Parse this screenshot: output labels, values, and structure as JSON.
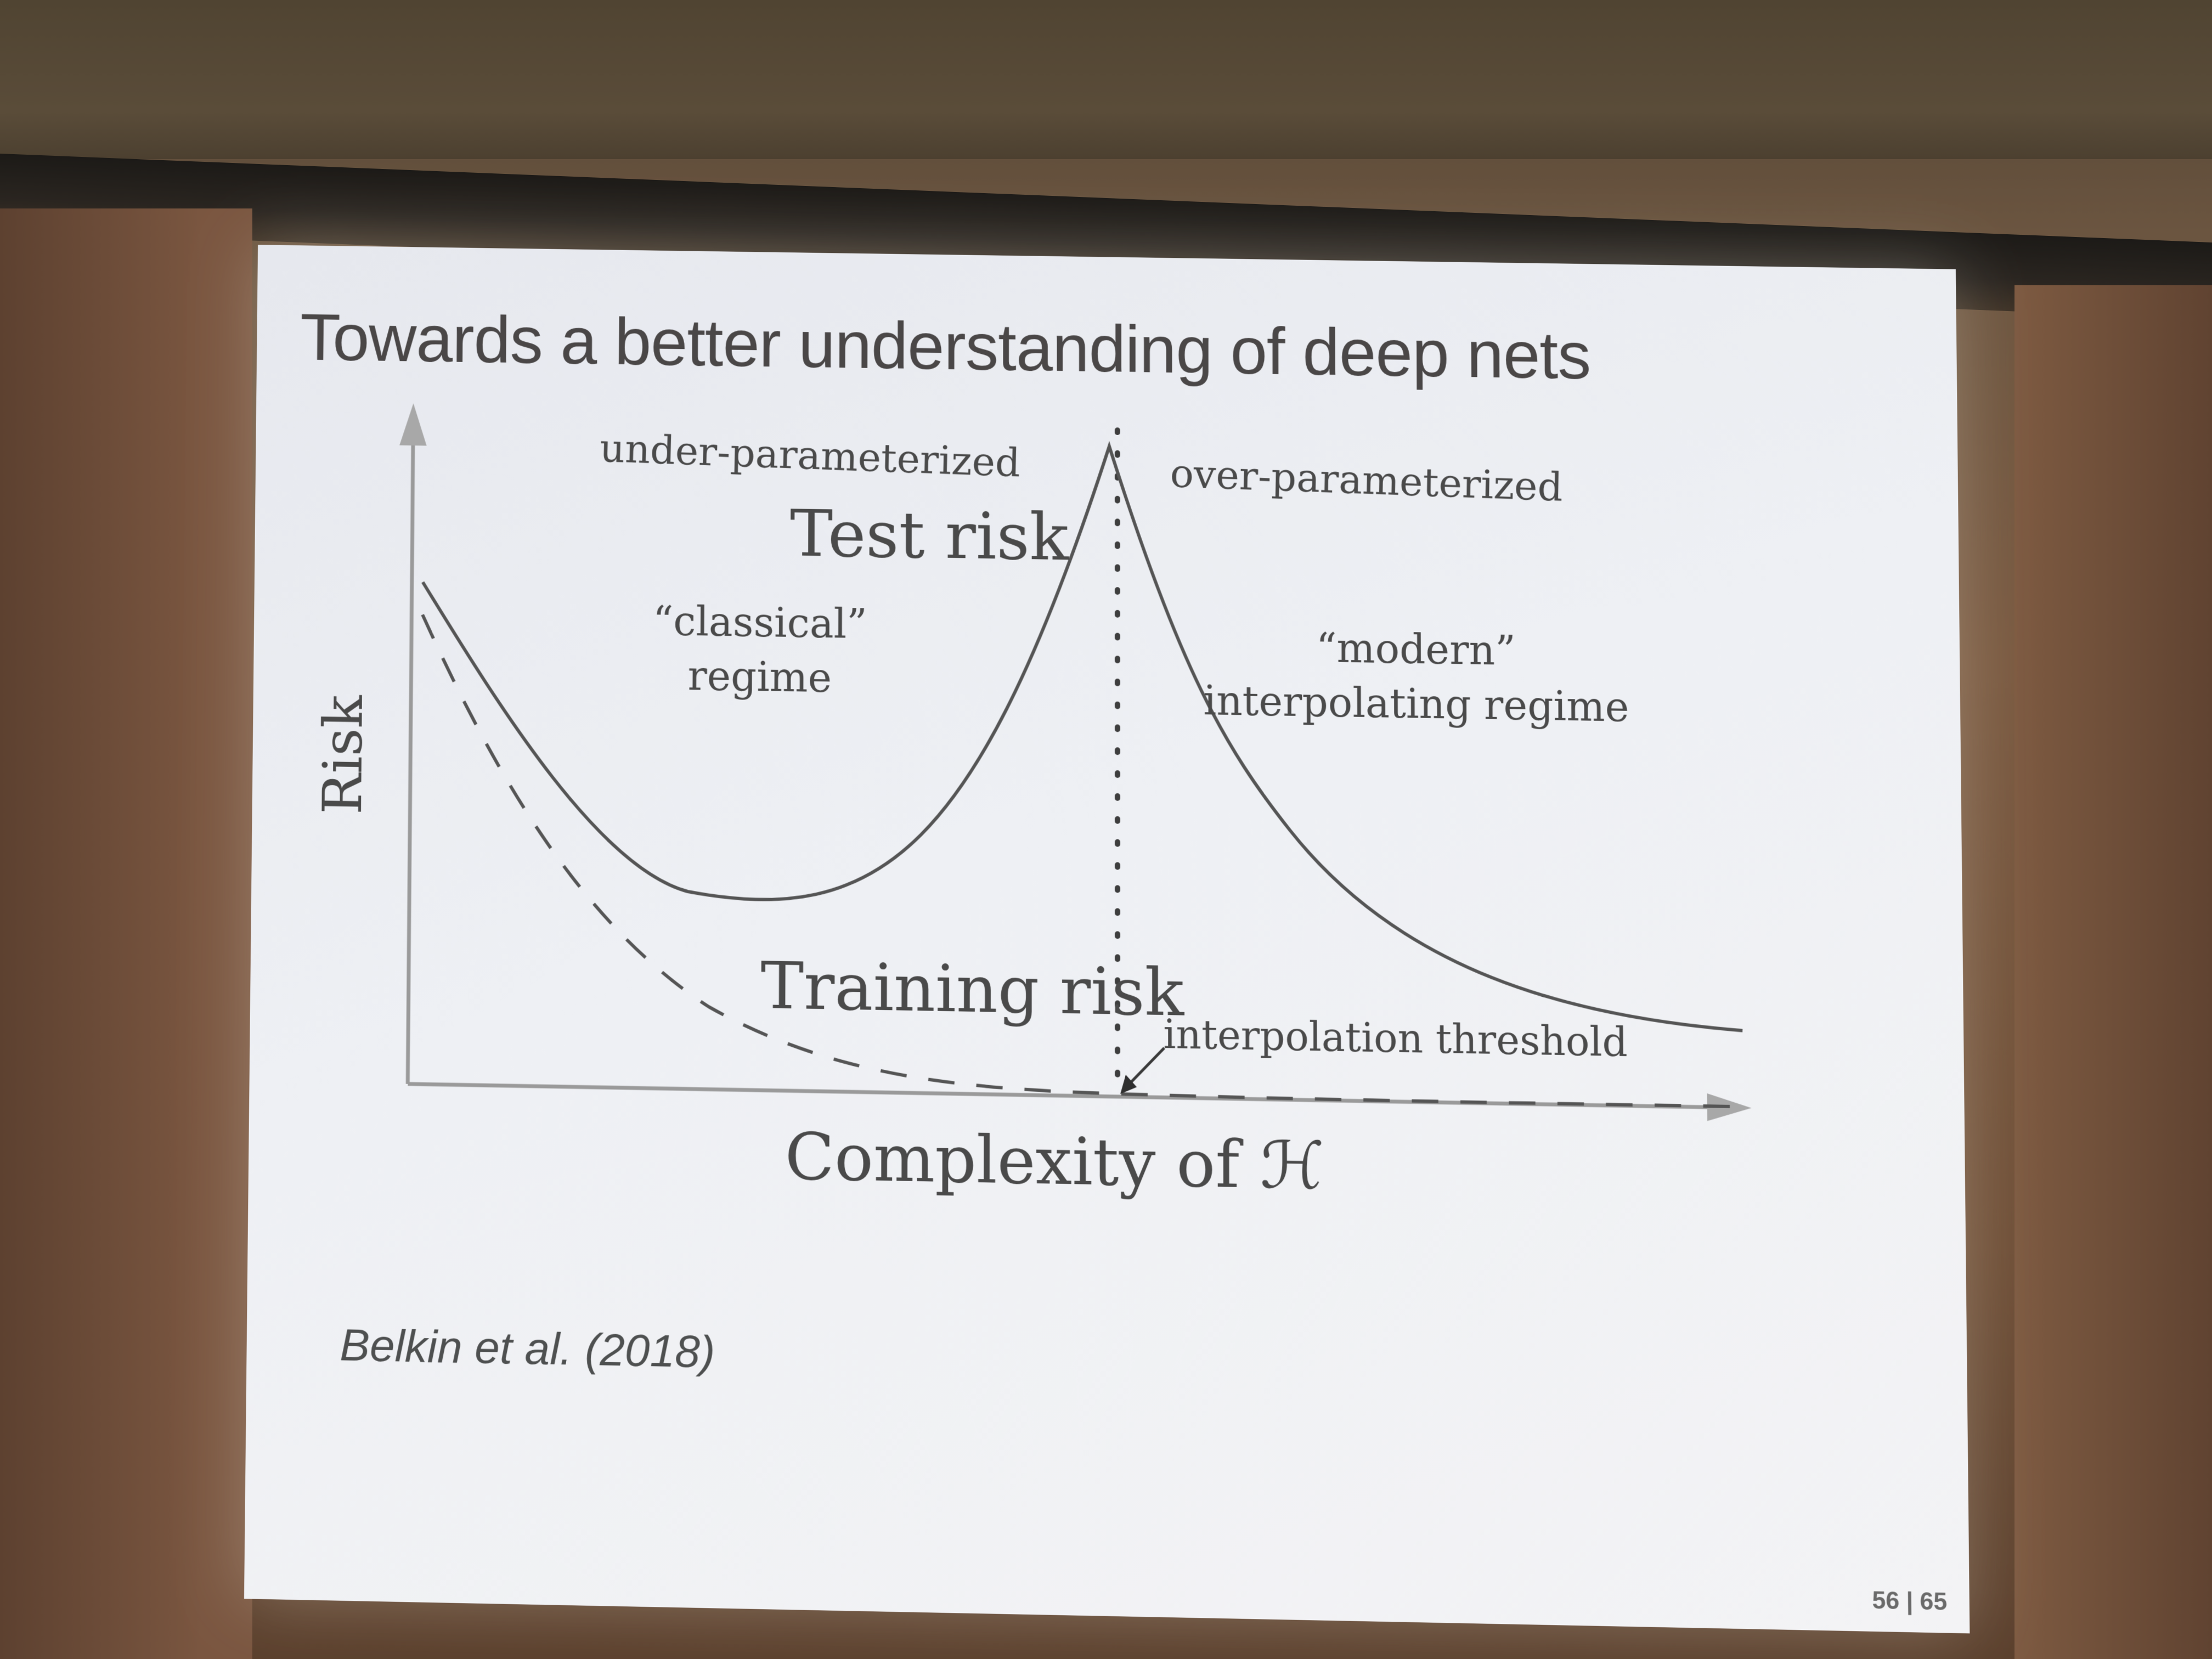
{
  "slide": {
    "title": "Towards a better understanding of deep nets",
    "citation": "Belkin et al. (2018)",
    "page_number": "56 | 65"
  },
  "chart_data": {
    "type": "line",
    "xlabel": "Complexity of ℋ",
    "ylabel": "Risk",
    "grid": false,
    "annotations": {
      "left_region": "under-parameterized",
      "right_region": "over-parameterized",
      "classical_line1": "“classical”",
      "classical_line2": "regime",
      "modern_line1": "“modern”",
      "modern_line2": "interpolating regime",
      "threshold": "interpolation threshold"
    },
    "series": [
      {
        "name": "Test risk",
        "style": "solid"
      },
      {
        "name": "Training risk",
        "style": "dashed"
      }
    ]
  }
}
